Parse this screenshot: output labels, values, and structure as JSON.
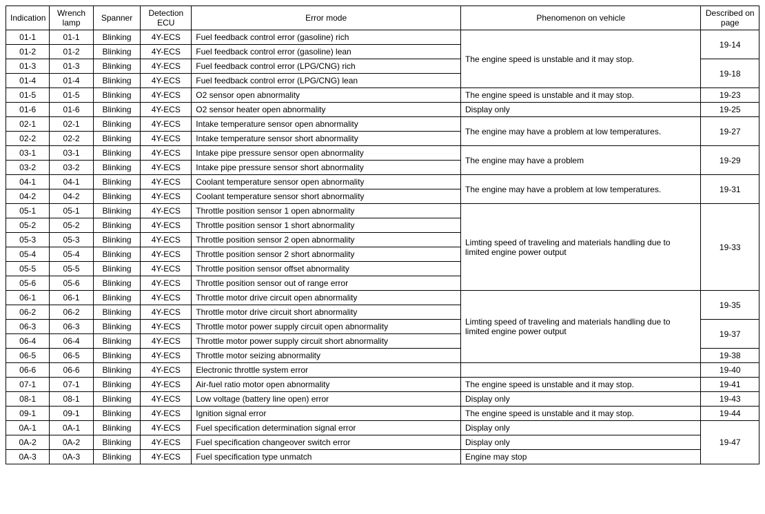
{
  "columns": [
    "Indication",
    "Wrench lamp",
    "Spanner",
    "Detection ECU",
    "Error mode",
    "Phenomenon on vehicle",
    "Described on page"
  ],
  "rows": [
    {
      "indication": "01-1",
      "wrench": "01-1",
      "spanner": "Blinking",
      "detection": "4Y-ECS",
      "error": "Fuel feedback control error (gasoline) rich",
      "phenomenon": "The engine speed is unstable and it may stop.",
      "phenomenon_rowspan": 4,
      "page": "19-14",
      "page_rowspan": 2
    },
    {
      "indication": "01-2",
      "wrench": "01-2",
      "spanner": "Blinking",
      "detection": "4Y-ECS",
      "error": "Fuel feedback control error (gasoline) lean"
    },
    {
      "indication": "01-3",
      "wrench": "01-3",
      "spanner": "Blinking",
      "detection": "4Y-ECS",
      "error": "Fuel feedback control error (LPG/CNG) rich",
      "page": "19-18",
      "page_rowspan": 2
    },
    {
      "indication": "01-4",
      "wrench": "01-4",
      "spanner": "Blinking",
      "detection": "4Y-ECS",
      "error": "Fuel feedback control error (LPG/CNG) lean"
    },
    {
      "indication": "01-5",
      "wrench": "01-5",
      "spanner": "Blinking",
      "detection": "4Y-ECS",
      "error": "O2 sensor open abnormality",
      "phenomenon": "The engine speed is unstable and it may stop.",
      "phenomenon_rowspan": 1,
      "page": "19-23",
      "page_rowspan": 1
    },
    {
      "indication": "01-6",
      "wrench": "01-6",
      "spanner": "Blinking",
      "detection": "4Y-ECS",
      "error": "O2 sensor heater open abnormality",
      "phenomenon": "Display only",
      "phenomenon_rowspan": 1,
      "page": "19-25",
      "page_rowspan": 1
    },
    {
      "indication": "02-1",
      "wrench": "02-1",
      "spanner": "Blinking",
      "detection": "4Y-ECS",
      "error": "Intake temperature sensor open abnormality",
      "phenomenon": "The engine may have a problem at low temperatures.",
      "phenomenon_rowspan": 2,
      "page": "19-27",
      "page_rowspan": 2
    },
    {
      "indication": "02-2",
      "wrench": "02-2",
      "spanner": "Blinking",
      "detection": "4Y-ECS",
      "error": "Intake temperature sensor short abnormality"
    },
    {
      "indication": "03-1",
      "wrench": "03-1",
      "spanner": "Blinking",
      "detection": "4Y-ECS",
      "error": "Intake pipe pressure sensor open abnormality",
      "phenomenon": "The engine may have a problem",
      "phenomenon_rowspan": 2,
      "page": "19-29",
      "page_rowspan": 2
    },
    {
      "indication": "03-2",
      "wrench": "03-2",
      "spanner": "Blinking",
      "detection": "4Y-ECS",
      "error": "Intake pipe pressure sensor short abnormality"
    },
    {
      "indication": "04-1",
      "wrench": "04-1",
      "spanner": "Blinking",
      "detection": "4Y-ECS",
      "error": "Coolant temperature sensor open abnormality",
      "phenomenon": "The engine may have a problem at low temperatures.",
      "phenomenon_rowspan": 2,
      "page": "19-31",
      "page_rowspan": 2
    },
    {
      "indication": "04-2",
      "wrench": "04-2",
      "spanner": "Blinking",
      "detection": "4Y-ECS",
      "error": "Coolant temperature sensor short abnormality"
    },
    {
      "indication": "05-1",
      "wrench": "05-1",
      "spanner": "Blinking",
      "detection": "4Y-ECS",
      "error": "Throttle position sensor 1 open abnormality",
      "phenomenon": "Limting speed of traveling and materials handling due to limited engine power output",
      "phenomenon_rowspan": 6,
      "page": "19-33",
      "page_rowspan": 6
    },
    {
      "indication": "05-2",
      "wrench": "05-2",
      "spanner": "Blinking",
      "detection": "4Y-ECS",
      "error": "Throttle position sensor 1 short abnormality"
    },
    {
      "indication": "05-3",
      "wrench": "05-3",
      "spanner": "Blinking",
      "detection": "4Y-ECS",
      "error": "Throttle position sensor 2 open abnormality"
    },
    {
      "indication": "05-4",
      "wrench": "05-4",
      "spanner": "Blinking",
      "detection": "4Y-ECS",
      "error": "Throttle position sensor 2 short abnormality"
    },
    {
      "indication": "05-5",
      "wrench": "05-5",
      "spanner": "Blinking",
      "detection": "4Y-ECS",
      "error": "Throttle position sensor offset abnormality"
    },
    {
      "indication": "05-6",
      "wrench": "05-6",
      "spanner": "Blinking",
      "detection": "4Y-ECS",
      "error": "Throttle position sensor out of range error"
    },
    {
      "indication": "06-1",
      "wrench": "06-1",
      "spanner": "Blinking",
      "detection": "4Y-ECS",
      "error": "Throttle motor drive circuit open abnormality",
      "phenomenon": "Limting speed of traveling and materials handling due to limited engine power output",
      "phenomenon_rowspan": 5,
      "page": "19-35",
      "page_rowspan": 2
    },
    {
      "indication": "06-2",
      "wrench": "06-2",
      "spanner": "Blinking",
      "detection": "4Y-ECS",
      "error": "Throttle motor drive circuit short abnormality"
    },
    {
      "indication": "06-3",
      "wrench": "06-3",
      "spanner": "Blinking",
      "detection": "4Y-ECS",
      "error": "Throttle motor power supply circuit open abnormality",
      "page": "19-37",
      "page_rowspan": 2
    },
    {
      "indication": "06-4",
      "wrench": "06-4",
      "spanner": "Blinking",
      "detection": "4Y-ECS",
      "error": "Throttle motor power supply circuit short abnormality"
    },
    {
      "indication": "06-5",
      "wrench": "06-5",
      "spanner": "Blinking",
      "detection": "4Y-ECS",
      "error": "Throttle motor seizing abnormality",
      "page": "19-38",
      "page_rowspan": 1
    },
    {
      "indication": "06-6",
      "wrench": "06-6",
      "spanner": "Blinking",
      "detection": "4Y-ECS",
      "error": "Electronic throttle system error",
      "phenomenon": "",
      "phenomenon_rowspan": 1,
      "page": "19-40",
      "page_rowspan": 1
    },
    {
      "indication": "07-1",
      "wrench": "07-1",
      "spanner": "Blinking",
      "detection": "4Y-ECS",
      "error": "Air-fuel ratio motor open abnormality",
      "phenomenon": "The engine speed is unstable and it may stop.",
      "phenomenon_rowspan": 1,
      "page": "19-41",
      "page_rowspan": 1
    },
    {
      "indication": "08-1",
      "wrench": "08-1",
      "spanner": "Blinking",
      "detection": "4Y-ECS",
      "error": "Low voltage (battery line open) error",
      "phenomenon": "Display only",
      "phenomenon_rowspan": 1,
      "page": "19-43",
      "page_rowspan": 1
    },
    {
      "indication": "09-1",
      "wrench": "09-1",
      "spanner": "Blinking",
      "detection": "4Y-ECS",
      "error": "Ignition signal error",
      "phenomenon": "The engine speed is unstable and it may stop.",
      "phenomenon_rowspan": 1,
      "page": "19-44",
      "page_rowspan": 1
    },
    {
      "indication": "0A-1",
      "wrench": "0A-1",
      "spanner": "Blinking",
      "detection": "4Y-ECS",
      "error": "Fuel specification determination signal error",
      "phenomenon": "Display only",
      "phenomenon_rowspan": 1,
      "page": "19-47",
      "page_rowspan": 3
    },
    {
      "indication": "0A-2",
      "wrench": "0A-2",
      "spanner": "Blinking",
      "detection": "4Y-ECS",
      "error": "Fuel specification changeover switch error",
      "phenomenon": "Display only",
      "phenomenon_rowspan": 1
    },
    {
      "indication": "0A-3",
      "wrench": "0A-3",
      "spanner": "Blinking",
      "detection": "4Y-ECS",
      "error": "Fuel specification type unmatch",
      "phenomenon": "Engine may stop",
      "phenomenon_rowspan": 1
    }
  ]
}
